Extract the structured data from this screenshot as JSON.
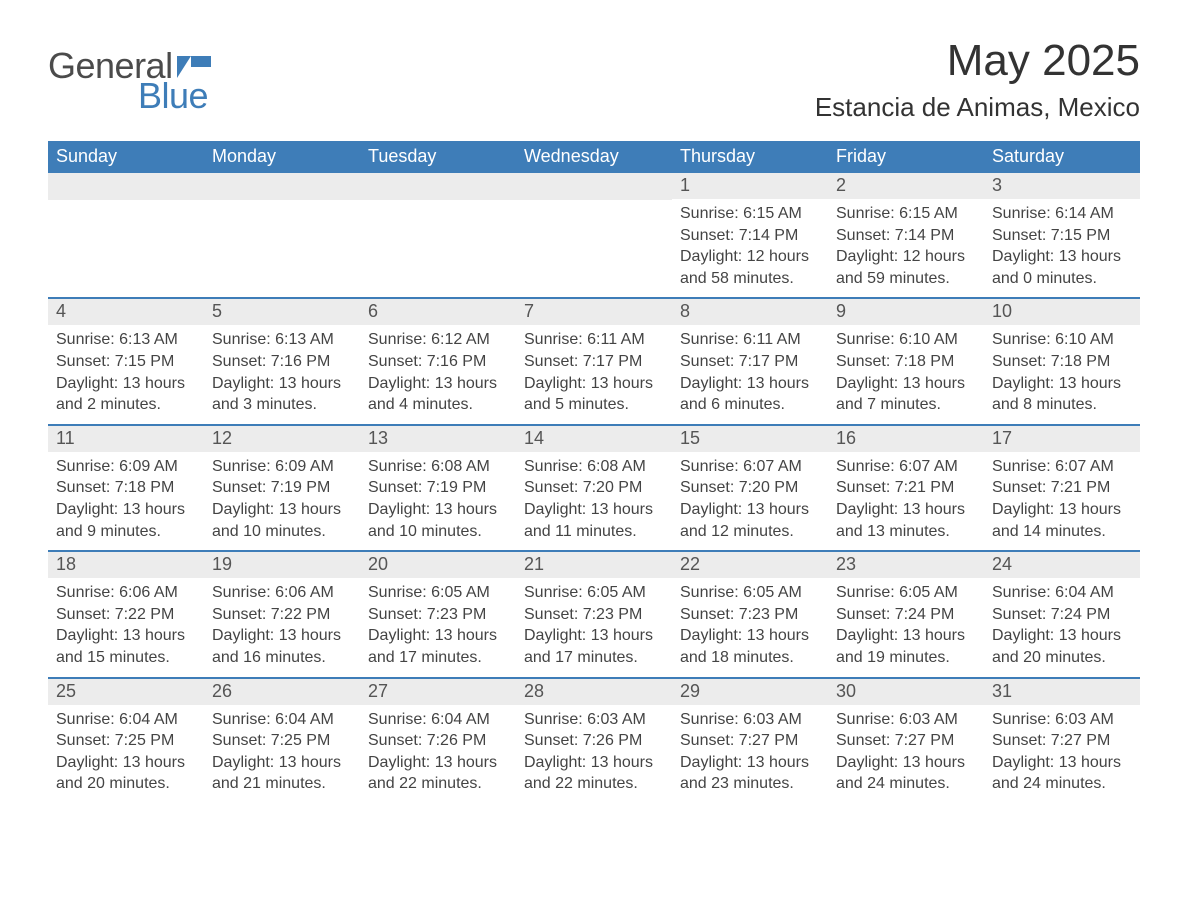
{
  "brand": {
    "text1": "General",
    "text2": "Blue",
    "flag_color": "#3e7db8"
  },
  "title": "May 2025",
  "location": "Estancia de Animas, Mexico",
  "colors": {
    "header_bg": "#3e7db8",
    "header_text": "#ffffff",
    "daynum_bg": "#ececec",
    "text": "#444444",
    "row_border": "#3e7db8",
    "page_bg": "#ffffff"
  },
  "day_names": [
    "Sunday",
    "Monday",
    "Tuesday",
    "Wednesday",
    "Thursday",
    "Friday",
    "Saturday"
  ],
  "weeks": [
    [
      {
        "num": "",
        "lines": []
      },
      {
        "num": "",
        "lines": []
      },
      {
        "num": "",
        "lines": []
      },
      {
        "num": "",
        "lines": []
      },
      {
        "num": "1",
        "lines": [
          "Sunrise: 6:15 AM",
          "Sunset: 7:14 PM",
          "Daylight: 12 hours",
          "and 58 minutes."
        ]
      },
      {
        "num": "2",
        "lines": [
          "Sunrise: 6:15 AM",
          "Sunset: 7:14 PM",
          "Daylight: 12 hours",
          "and 59 minutes."
        ]
      },
      {
        "num": "3",
        "lines": [
          "Sunrise: 6:14 AM",
          "Sunset: 7:15 PM",
          "Daylight: 13 hours",
          "and 0 minutes."
        ]
      }
    ],
    [
      {
        "num": "4",
        "lines": [
          "Sunrise: 6:13 AM",
          "Sunset: 7:15 PM",
          "Daylight: 13 hours",
          "and 2 minutes."
        ]
      },
      {
        "num": "5",
        "lines": [
          "Sunrise: 6:13 AM",
          "Sunset: 7:16 PM",
          "Daylight: 13 hours",
          "and 3 minutes."
        ]
      },
      {
        "num": "6",
        "lines": [
          "Sunrise: 6:12 AM",
          "Sunset: 7:16 PM",
          "Daylight: 13 hours",
          "and 4 minutes."
        ]
      },
      {
        "num": "7",
        "lines": [
          "Sunrise: 6:11 AM",
          "Sunset: 7:17 PM",
          "Daylight: 13 hours",
          "and 5 minutes."
        ]
      },
      {
        "num": "8",
        "lines": [
          "Sunrise: 6:11 AM",
          "Sunset: 7:17 PM",
          "Daylight: 13 hours",
          "and 6 minutes."
        ]
      },
      {
        "num": "9",
        "lines": [
          "Sunrise: 6:10 AM",
          "Sunset: 7:18 PM",
          "Daylight: 13 hours",
          "and 7 minutes."
        ]
      },
      {
        "num": "10",
        "lines": [
          "Sunrise: 6:10 AM",
          "Sunset: 7:18 PM",
          "Daylight: 13 hours",
          "and 8 minutes."
        ]
      }
    ],
    [
      {
        "num": "11",
        "lines": [
          "Sunrise: 6:09 AM",
          "Sunset: 7:18 PM",
          "Daylight: 13 hours",
          "and 9 minutes."
        ]
      },
      {
        "num": "12",
        "lines": [
          "Sunrise: 6:09 AM",
          "Sunset: 7:19 PM",
          "Daylight: 13 hours",
          "and 10 minutes."
        ]
      },
      {
        "num": "13",
        "lines": [
          "Sunrise: 6:08 AM",
          "Sunset: 7:19 PM",
          "Daylight: 13 hours",
          "and 10 minutes."
        ]
      },
      {
        "num": "14",
        "lines": [
          "Sunrise: 6:08 AM",
          "Sunset: 7:20 PM",
          "Daylight: 13 hours",
          "and 11 minutes."
        ]
      },
      {
        "num": "15",
        "lines": [
          "Sunrise: 6:07 AM",
          "Sunset: 7:20 PM",
          "Daylight: 13 hours",
          "and 12 minutes."
        ]
      },
      {
        "num": "16",
        "lines": [
          "Sunrise: 6:07 AM",
          "Sunset: 7:21 PM",
          "Daylight: 13 hours",
          "and 13 minutes."
        ]
      },
      {
        "num": "17",
        "lines": [
          "Sunrise: 6:07 AM",
          "Sunset: 7:21 PM",
          "Daylight: 13 hours",
          "and 14 minutes."
        ]
      }
    ],
    [
      {
        "num": "18",
        "lines": [
          "Sunrise: 6:06 AM",
          "Sunset: 7:22 PM",
          "Daylight: 13 hours",
          "and 15 minutes."
        ]
      },
      {
        "num": "19",
        "lines": [
          "Sunrise: 6:06 AM",
          "Sunset: 7:22 PM",
          "Daylight: 13 hours",
          "and 16 minutes."
        ]
      },
      {
        "num": "20",
        "lines": [
          "Sunrise: 6:05 AM",
          "Sunset: 7:23 PM",
          "Daylight: 13 hours",
          "and 17 minutes."
        ]
      },
      {
        "num": "21",
        "lines": [
          "Sunrise: 6:05 AM",
          "Sunset: 7:23 PM",
          "Daylight: 13 hours",
          "and 17 minutes."
        ]
      },
      {
        "num": "22",
        "lines": [
          "Sunrise: 6:05 AM",
          "Sunset: 7:23 PM",
          "Daylight: 13 hours",
          "and 18 minutes."
        ]
      },
      {
        "num": "23",
        "lines": [
          "Sunrise: 6:05 AM",
          "Sunset: 7:24 PM",
          "Daylight: 13 hours",
          "and 19 minutes."
        ]
      },
      {
        "num": "24",
        "lines": [
          "Sunrise: 6:04 AM",
          "Sunset: 7:24 PM",
          "Daylight: 13 hours",
          "and 20 minutes."
        ]
      }
    ],
    [
      {
        "num": "25",
        "lines": [
          "Sunrise: 6:04 AM",
          "Sunset: 7:25 PM",
          "Daylight: 13 hours",
          "and 20 minutes."
        ]
      },
      {
        "num": "26",
        "lines": [
          "Sunrise: 6:04 AM",
          "Sunset: 7:25 PM",
          "Daylight: 13 hours",
          "and 21 minutes."
        ]
      },
      {
        "num": "27",
        "lines": [
          "Sunrise: 6:04 AM",
          "Sunset: 7:26 PM",
          "Daylight: 13 hours",
          "and 22 minutes."
        ]
      },
      {
        "num": "28",
        "lines": [
          "Sunrise: 6:03 AM",
          "Sunset: 7:26 PM",
          "Daylight: 13 hours",
          "and 22 minutes."
        ]
      },
      {
        "num": "29",
        "lines": [
          "Sunrise: 6:03 AM",
          "Sunset: 7:27 PM",
          "Daylight: 13 hours",
          "and 23 minutes."
        ]
      },
      {
        "num": "30",
        "lines": [
          "Sunrise: 6:03 AM",
          "Sunset: 7:27 PM",
          "Daylight: 13 hours",
          "and 24 minutes."
        ]
      },
      {
        "num": "31",
        "lines": [
          "Sunrise: 6:03 AM",
          "Sunset: 7:27 PM",
          "Daylight: 13 hours",
          "and 24 minutes."
        ]
      }
    ]
  ]
}
